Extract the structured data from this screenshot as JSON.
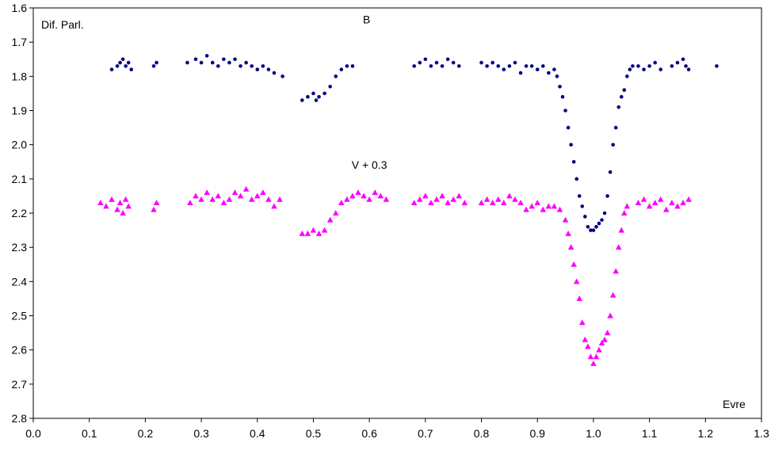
{
  "chart_data": {
    "type": "scatter",
    "title": "",
    "corner_label": "Dif. Parl.",
    "xlabel": "Evre",
    "xlim": [
      0.0,
      1.3
    ],
    "ylim": [
      1.6,
      2.8
    ],
    "y_inverted": true,
    "grid": false,
    "x_ticks": [
      "0.0",
      "0.1",
      "0.2",
      "0.3",
      "0.4",
      "0.5",
      "0.6",
      "0.7",
      "0.8",
      "0.9",
      "1.0",
      "1.1",
      "1.2",
      "1.3"
    ],
    "y_ticks": [
      "1.6",
      "1.7",
      "1.8",
      "1.9",
      "2.0",
      "2.1",
      "2.2",
      "2.3",
      "2.4",
      "2.5",
      "2.6",
      "2.7",
      "2.8"
    ],
    "series": [
      {
        "name": "B",
        "marker": "circle",
        "color": "#000080",
        "x": [
          0.14,
          0.15,
          0.155,
          0.16,
          0.165,
          0.17,
          0.175,
          0.215,
          0.22,
          0.275,
          0.29,
          0.3,
          0.31,
          0.32,
          0.33,
          0.34,
          0.35,
          0.36,
          0.37,
          0.38,
          0.39,
          0.4,
          0.41,
          0.42,
          0.43,
          0.445,
          0.48,
          0.49,
          0.5,
          0.505,
          0.51,
          0.52,
          0.53,
          0.54,
          0.55,
          0.56,
          0.57,
          0.68,
          0.69,
          0.7,
          0.71,
          0.72,
          0.73,
          0.74,
          0.75,
          0.76,
          0.8,
          0.81,
          0.82,
          0.83,
          0.84,
          0.85,
          0.86,
          0.87,
          0.88,
          0.89,
          0.9,
          0.91,
          0.92,
          0.93,
          0.935,
          0.94,
          0.945,
          0.95,
          0.955,
          0.96,
          0.965,
          0.97,
          0.975,
          0.98,
          0.985,
          0.99,
          0.995,
          1.0,
          1.005,
          1.01,
          1.015,
          1.02,
          1.025,
          1.03,
          1.035,
          1.04,
          1.045,
          1.05,
          1.055,
          1.06,
          1.065,
          1.07,
          1.08,
          1.09,
          1.1,
          1.11,
          1.12,
          1.14,
          1.15,
          1.16,
          1.165,
          1.17,
          1.22
        ],
        "y": [
          1.78,
          1.77,
          1.76,
          1.75,
          1.77,
          1.76,
          1.78,
          1.77,
          1.76,
          1.76,
          1.75,
          1.76,
          1.74,
          1.76,
          1.77,
          1.75,
          1.76,
          1.75,
          1.77,
          1.76,
          1.77,
          1.78,
          1.77,
          1.78,
          1.79,
          1.8,
          1.87,
          1.86,
          1.85,
          1.87,
          1.86,
          1.85,
          1.83,
          1.8,
          1.78,
          1.77,
          1.77,
          1.77,
          1.76,
          1.75,
          1.77,
          1.76,
          1.77,
          1.75,
          1.76,
          1.77,
          1.76,
          1.77,
          1.76,
          1.77,
          1.78,
          1.77,
          1.76,
          1.79,
          1.77,
          1.77,
          1.78,
          1.77,
          1.79,
          1.78,
          1.8,
          1.83,
          1.86,
          1.9,
          1.95,
          2.0,
          2.05,
          2.1,
          2.15,
          2.18,
          2.21,
          2.24,
          2.25,
          2.25,
          2.24,
          2.23,
          2.22,
          2.2,
          2.15,
          2.08,
          2.0,
          1.95,
          1.89,
          1.86,
          1.84,
          1.8,
          1.78,
          1.77,
          1.77,
          1.78,
          1.77,
          1.76,
          1.78,
          1.77,
          1.76,
          1.75,
          1.77,
          1.78,
          1.77
        ]
      },
      {
        "name": "V + 0.3",
        "marker": "triangle",
        "color": "#FF00FF",
        "x": [
          0.12,
          0.13,
          0.14,
          0.15,
          0.155,
          0.16,
          0.165,
          0.17,
          0.215,
          0.22,
          0.28,
          0.29,
          0.3,
          0.31,
          0.32,
          0.33,
          0.34,
          0.35,
          0.36,
          0.37,
          0.38,
          0.39,
          0.4,
          0.41,
          0.42,
          0.43,
          0.44,
          0.48,
          0.49,
          0.5,
          0.51,
          0.52,
          0.53,
          0.54,
          0.55,
          0.56,
          0.57,
          0.58,
          0.59,
          0.6,
          0.61,
          0.62,
          0.63,
          0.68,
          0.69,
          0.7,
          0.71,
          0.72,
          0.73,
          0.74,
          0.75,
          0.76,
          0.77,
          0.8,
          0.81,
          0.82,
          0.83,
          0.84,
          0.85,
          0.86,
          0.87,
          0.88,
          0.89,
          0.9,
          0.91,
          0.92,
          0.93,
          0.94,
          0.95,
          0.955,
          0.96,
          0.965,
          0.97,
          0.975,
          0.98,
          0.985,
          0.99,
          0.995,
          1.0,
          1.005,
          1.01,
          1.015,
          1.02,
          1.025,
          1.03,
          1.035,
          1.04,
          1.045,
          1.05,
          1.055,
          1.06,
          1.08,
          1.09,
          1.1,
          1.11,
          1.12,
          1.13,
          1.14,
          1.15,
          1.16,
          1.17
        ],
        "y": [
          2.17,
          2.18,
          2.16,
          2.19,
          2.17,
          2.2,
          2.16,
          2.18,
          2.19,
          2.17,
          2.17,
          2.15,
          2.16,
          2.14,
          2.16,
          2.15,
          2.17,
          2.16,
          2.14,
          2.15,
          2.13,
          2.16,
          2.15,
          2.14,
          2.16,
          2.18,
          2.16,
          2.26,
          2.26,
          2.25,
          2.26,
          2.25,
          2.22,
          2.2,
          2.17,
          2.16,
          2.15,
          2.14,
          2.15,
          2.16,
          2.14,
          2.15,
          2.16,
          2.17,
          2.16,
          2.15,
          2.17,
          2.16,
          2.15,
          2.17,
          2.16,
          2.15,
          2.17,
          2.17,
          2.16,
          2.17,
          2.16,
          2.17,
          2.15,
          2.16,
          2.17,
          2.19,
          2.18,
          2.17,
          2.19,
          2.18,
          2.18,
          2.19,
          2.22,
          2.26,
          2.3,
          2.35,
          2.4,
          2.45,
          2.52,
          2.57,
          2.59,
          2.62,
          2.64,
          2.62,
          2.6,
          2.58,
          2.57,
          2.55,
          2.5,
          2.44,
          2.37,
          2.3,
          2.25,
          2.2,
          2.18,
          2.17,
          2.16,
          2.18,
          2.17,
          2.16,
          2.19,
          2.17,
          2.18,
          2.17,
          2.16
        ]
      }
    ],
    "annotations": [
      {
        "text": "B",
        "x": 0.595,
        "y": 1.645
      },
      {
        "text": "V + 0.3",
        "x": 0.6,
        "y": 2.07
      }
    ]
  }
}
